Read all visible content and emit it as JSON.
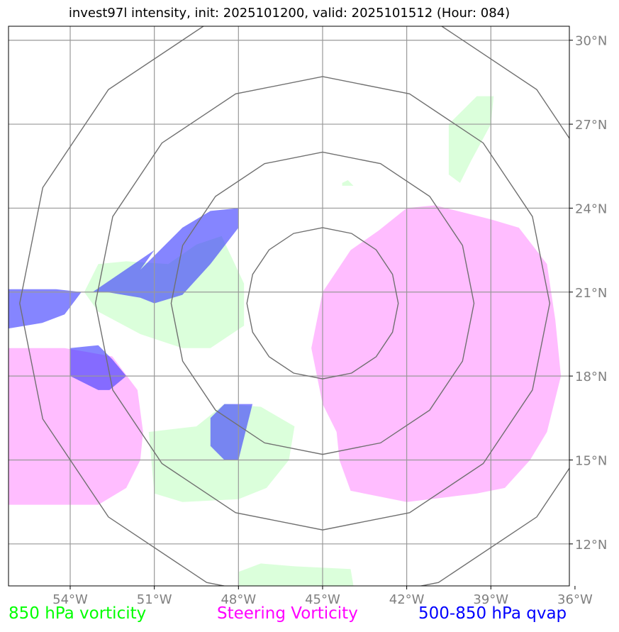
{
  "title": "invest97l intensity, init: 2025101200, valid: 2025101512 (Hour: 084)",
  "map": {
    "lon_range": [
      -56.2,
      -36.2
    ],
    "lat_range": [
      10.5,
      30.5
    ],
    "lon_ticks": [
      {
        "value": -54,
        "label": "54°W"
      },
      {
        "value": -51,
        "label": "51°W"
      },
      {
        "value": -48,
        "label": "48°W"
      },
      {
        "value": -45,
        "label": "45°W"
      },
      {
        "value": -42,
        "label": "42°W"
      },
      {
        "value": -39,
        "label": "39°W"
      },
      {
        "value": -36,
        "label": "36°W"
      }
    ],
    "lat_ticks": [
      {
        "value": 30,
        "label": "30°N"
      },
      {
        "value": 27,
        "label": "27°N"
      },
      {
        "value": 24,
        "label": "24°N"
      },
      {
        "value": 21,
        "label": "21°N"
      },
      {
        "value": 18,
        "label": "18°N"
      },
      {
        "value": 15,
        "label": "15°N"
      },
      {
        "value": 12,
        "label": "12°N"
      }
    ],
    "center": {
      "lon": -45.0,
      "lat": 20.6
    },
    "range_rings_deg": [
      2.7,
      5.4,
      8.1,
      10.8
    ]
  },
  "layers": [
    {
      "name": "850-vorticity",
      "color": "#ccffcc",
      "opacity": 0.7,
      "polygons": [
        [
          [
            -53.5,
            21
          ],
          [
            -53.0,
            22.0
          ],
          [
            -52,
            22.1
          ],
          [
            -50.5,
            22
          ],
          [
            -49.5,
            22.7
          ],
          [
            -48.6,
            23.0
          ],
          [
            -47.8,
            21.3
          ],
          [
            -47.8,
            19.8
          ],
          [
            -49,
            19.0
          ],
          [
            -50,
            19.0
          ],
          [
            -51.5,
            19.5
          ],
          [
            -53,
            20.3
          ]
        ],
        [
          [
            -51.2,
            16.0
          ],
          [
            -49.5,
            16.2
          ],
          [
            -48.5,
            17.0
          ],
          [
            -47.2,
            16.9
          ],
          [
            -46.0,
            16.2
          ],
          [
            -46.2,
            15.0
          ],
          [
            -47.0,
            14.0
          ],
          [
            -48.0,
            13.6
          ],
          [
            -50,
            13.5
          ],
          [
            -51.0,
            13.8
          ]
        ],
        [
          [
            -40.5,
            27.0
          ],
          [
            -39.5,
            28.0
          ],
          [
            -38.9,
            28.0
          ],
          [
            -39.0,
            27.0
          ],
          [
            -39.7,
            25.7
          ],
          [
            -40.1,
            24.9
          ],
          [
            -40.5,
            25.2
          ]
        ],
        [
          [
            -44.3,
            24.9
          ],
          [
            -44.1,
            25.0
          ],
          [
            -43.9,
            24.8
          ],
          [
            -44.3,
            24.8
          ]
        ],
        [
          [
            -48.0,
            10.5
          ],
          [
            -48.0,
            11.0
          ],
          [
            -47.2,
            11.3
          ],
          [
            -46.0,
            11.2
          ],
          [
            -44.0,
            11.1
          ],
          [
            -43.9,
            10.5
          ]
        ]
      ]
    },
    {
      "name": "steering-vorticity",
      "color": "#ff99ff",
      "opacity": 0.65,
      "polygons": [
        [
          [
            -45.4,
            19.0
          ],
          [
            -45.0,
            21.0
          ],
          [
            -44.0,
            22.5
          ],
          [
            -43.0,
            23.2
          ],
          [
            -42.0,
            24.0
          ],
          [
            -41.0,
            24.1
          ],
          [
            -39.0,
            23.6
          ],
          [
            -38.0,
            23.3
          ],
          [
            -37.0,
            22.0
          ],
          [
            -36.7,
            20.0
          ],
          [
            -36.5,
            18.0
          ],
          [
            -37.0,
            16.0
          ],
          [
            -37.6,
            15.0
          ],
          [
            -38.5,
            14.0
          ],
          [
            -39.5,
            13.8
          ],
          [
            -42.0,
            13.5
          ],
          [
            -44.0,
            13.9
          ],
          [
            -44.4,
            15.0
          ],
          [
            -44.5,
            16.0
          ],
          [
            -45.0,
            17.0
          ]
        ],
        [
          [
            -56.2,
            19.0
          ],
          [
            -54.2,
            19.0
          ],
          [
            -52.5,
            18.7
          ],
          [
            -51.6,
            17.5
          ],
          [
            -51.4,
            16.0
          ],
          [
            -51.5,
            15.0
          ],
          [
            -52.0,
            14.0
          ],
          [
            -53.0,
            13.4
          ],
          [
            -54.0,
            13.4
          ],
          [
            -56.2,
            13.4
          ]
        ]
      ]
    },
    {
      "name": "500-850-qvap",
      "color": "#3333ff",
      "opacity": 0.6,
      "polygons": [
        [
          [
            -53.2,
            21.0
          ],
          [
            -52.7,
            21.0
          ],
          [
            -51.5,
            20.8
          ],
          [
            -51.0,
            20.6
          ],
          [
            -50.0,
            20.9
          ],
          [
            -49.0,
            22.0
          ],
          [
            -48.0,
            23.3
          ],
          [
            -48.0,
            24.0
          ],
          [
            -49.0,
            23.9
          ],
          [
            -50.0,
            23.3
          ],
          [
            -51.5,
            21.8
          ],
          [
            -51.0,
            22.5
          ]
        ],
        [
          [
            -56.2,
            21.1
          ],
          [
            -54.5,
            21.1
          ],
          [
            -53.6,
            21.0
          ],
          [
            -54.2,
            20.2
          ],
          [
            -55.0,
            19.9
          ],
          [
            -56.2,
            19.7
          ]
        ],
        [
          [
            -54.0,
            19.0
          ],
          [
            -53.0,
            19.1
          ],
          [
            -52.5,
            18.6
          ],
          [
            -52.0,
            18.0
          ],
          [
            -52.6,
            17.5
          ],
          [
            -53.0,
            17.5
          ],
          [
            -54.0,
            18.0
          ]
        ],
        [
          [
            -48.0,
            15.0
          ],
          [
            -48.5,
            15.0
          ],
          [
            -49.0,
            15.5
          ],
          [
            -49.0,
            16.5
          ],
          [
            -48.5,
            17.0
          ],
          [
            -47.5,
            17.0
          ]
        ]
      ]
    }
  ],
  "legend": {
    "vorticity": {
      "label": "850 hPa vorticity",
      "color": "#00ff00"
    },
    "steering": {
      "label": "Steering Vorticity",
      "color": "#ff00ff"
    },
    "qvap": {
      "label": "500-850 hPa qvap",
      "color": "#0000ff"
    }
  }
}
